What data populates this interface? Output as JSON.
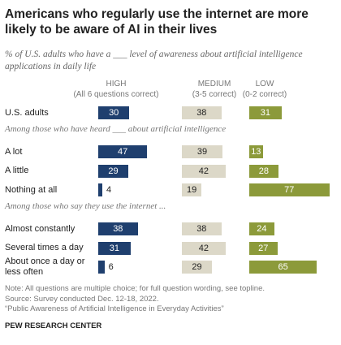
{
  "chart_data": {
    "type": "bar",
    "title": "Americans who regularly use the internet are more likely to be aware of AI in their lives",
    "subtitle": "% of U.S. adults who have a ___ level of awareness about artificial intelligence applications in daily life",
    "series": [
      {
        "name": "HIGH",
        "note": "(All 6 questions correct)",
        "color": "#1f3f6e"
      },
      {
        "name": "MEDIUM",
        "note": "(3-5 correct)",
        "color": "#dcd8c8"
      },
      {
        "name": "LOW",
        "note": "(0-2 correct)",
        "color": "#8c9a3a"
      }
    ],
    "groups": [
      {
        "rows": [
          {
            "category": "U.S. adults",
            "values": [
              30,
              38,
              31
            ]
          }
        ]
      },
      {
        "heading": "Among those who have heard ___ about artificial intelligence",
        "rows": [
          {
            "category": "A lot",
            "values": [
              47,
              39,
              13
            ]
          },
          {
            "category": "A little",
            "values": [
              29,
              42,
              28
            ]
          },
          {
            "category": "Nothing at all",
            "values": [
              4,
              19,
              77
            ]
          }
        ]
      },
      {
        "heading": "Among those who say they use the internet ...",
        "rows": [
          {
            "category": "Almost constantly",
            "values": [
              38,
              38,
              24
            ]
          },
          {
            "category": "Several times a day",
            "values": [
              31,
              42,
              27
            ]
          },
          {
            "category": "About once a day or less often",
            "values": [
              6,
              29,
              65
            ]
          }
        ]
      }
    ],
    "notes": [
      "Note: All questions are multiple choice; for full question wording, see topline.",
      "Source: Survey conducted Dec. 12-18, 2022.",
      "“Public Awareness of Artificial Intelligence in Everyday Activities”"
    ],
    "credit": "PEW RESEARCH CENTER"
  }
}
